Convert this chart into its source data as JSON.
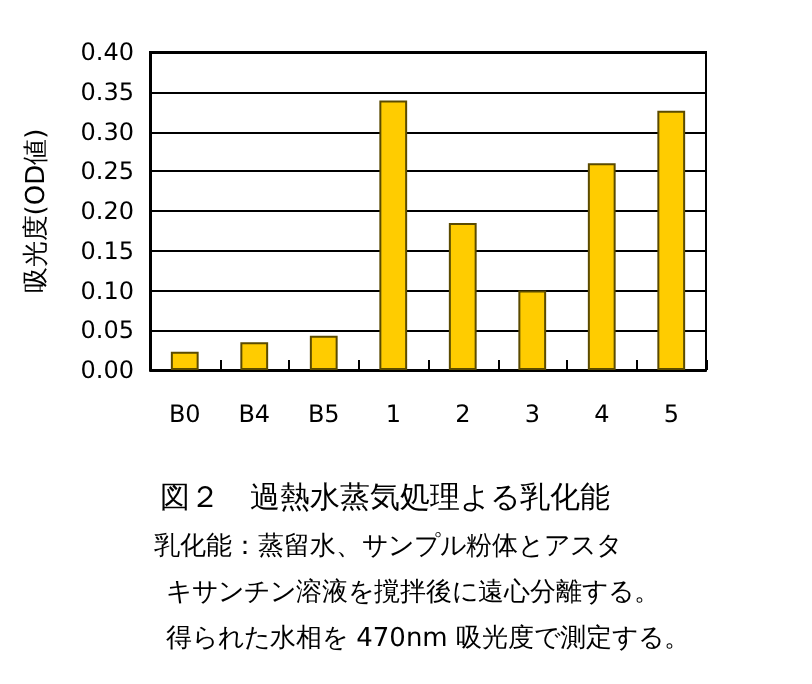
{
  "chart_data": {
    "type": "bar",
    "title": "図２　過熱水蒸気処理よる乳化能",
    "annotations": [
      "乳化能：蒸留水、サンプル粉体とアスタ",
      "キサンチン溶液を撹拌後に遠心分離する。",
      "得られた水相を 470nm 吸光度で測定する。"
    ],
    "ylabel": "吸光度(OD値)",
    "categories": [
      "B0",
      "B4",
      "B5",
      "1",
      "2",
      "3",
      "4",
      "5"
    ],
    "values": [
      0.023,
      0.035,
      0.043,
      0.339,
      0.185,
      0.1,
      0.26,
      0.326
    ],
    "color": "#ffcc00",
    "ylim": [
      0,
      0.4
    ],
    "yticks": [
      {
        "value": 0,
        "label": "0.00"
      },
      {
        "value": 0.05,
        "label": "0.05"
      },
      {
        "value": 0.1,
        "label": "0.10"
      },
      {
        "value": 0.15,
        "label": "0.15"
      },
      {
        "value": 0.2,
        "label": "0.20"
      },
      {
        "value": 0.25,
        "label": "0.25"
      },
      {
        "value": 0.3,
        "label": "0.30"
      },
      {
        "value": 0.35,
        "label": "0.35"
      },
      {
        "value": 0.4,
        "label": "0.40"
      }
    ],
    "grid": "y"
  }
}
